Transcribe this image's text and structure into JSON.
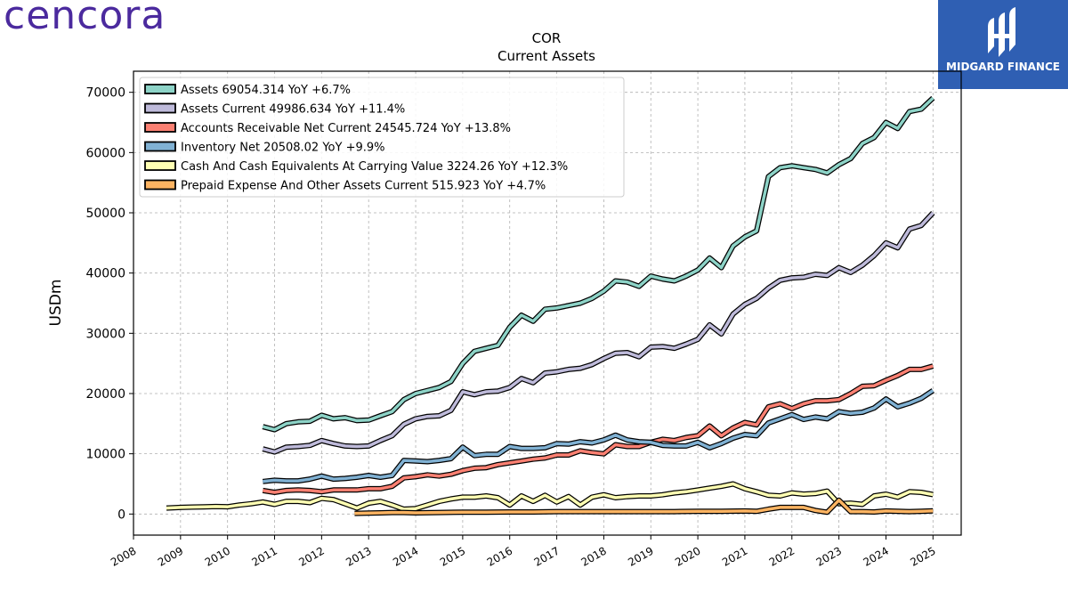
{
  "brand": {
    "logo_text": "cencora",
    "sponsor": "MIDGARD FINANCE"
  },
  "chart_data": {
    "type": "line",
    "title": "COR",
    "subtitle": "Current  Assets",
    "ylabel": "USDm",
    "xlabel": "",
    "xlim": [
      2008.0,
      2025.6
    ],
    "ylim": [
      -3500,
      73500
    ],
    "yticks": [
      0,
      10000,
      20000,
      30000,
      40000,
      50000,
      60000,
      70000
    ],
    "xticks": [
      2008,
      2009,
      2010,
      2011,
      2012,
      2013,
      2014,
      2015,
      2016,
      2017,
      2018,
      2019,
      2020,
      2021,
      2022,
      2023,
      2024,
      2025
    ],
    "grid": true,
    "legend_position": "top-left",
    "series": [
      {
        "name": "Assets  69054.314 YoY +6.7%",
        "color": "#8dd3c7",
        "x": [
          2010.75,
          2011.0,
          2011.25,
          2011.5,
          2011.75,
          2012.0,
          2012.25,
          2012.5,
          2012.75,
          2013.0,
          2013.25,
          2013.5,
          2013.75,
          2014.0,
          2014.25,
          2014.5,
          2014.75,
          2015.0,
          2015.25,
          2015.5,
          2015.75,
          2016.0,
          2016.25,
          2016.5,
          2016.75,
          2017.0,
          2017.25,
          2017.5,
          2017.75,
          2018.0,
          2018.25,
          2018.5,
          2018.75,
          2019.0,
          2019.25,
          2019.5,
          2019.75,
          2020.0,
          2020.25,
          2020.5,
          2020.75,
          2021.0,
          2021.25,
          2021.5,
          2021.75,
          2022.0,
          2022.25,
          2022.5,
          2022.75,
          2023.0,
          2023.25,
          2023.5,
          2023.75,
          2024.0,
          2024.25,
          2024.5,
          2024.75,
          2025.0
        ],
        "y": [
          14500,
          14000,
          15000,
          15300,
          15400,
          16400,
          15800,
          16000,
          15500,
          15600,
          16300,
          17000,
          19000,
          20000,
          20500,
          21000,
          22000,
          25000,
          27000,
          27500,
          28000,
          31000,
          33000,
          32000,
          34000,
          34200,
          34600,
          35000,
          35800,
          37000,
          38700,
          38500,
          37800,
          39500,
          39000,
          38700,
          39500,
          40500,
          42500,
          40900,
          44500,
          46000,
          47000,
          56000,
          57500,
          57800,
          57500,
          57200,
          56600,
          58000,
          59000,
          61500,
          62500,
          65000,
          64000,
          66800,
          67200,
          69054
        ]
      },
      {
        "name": "Assets Current  49986.634 YoY +11.4%",
        "color": "#bebada",
        "x": [
          2010.75,
          2011.0,
          2011.25,
          2011.5,
          2011.75,
          2012.0,
          2012.25,
          2012.5,
          2012.75,
          2013.0,
          2013.25,
          2013.5,
          2013.75,
          2014.0,
          2014.25,
          2014.5,
          2014.75,
          2015.0,
          2015.25,
          2015.5,
          2015.75,
          2016.0,
          2016.25,
          2016.5,
          2016.75,
          2017.0,
          2017.25,
          2017.5,
          2017.75,
          2018.0,
          2018.25,
          2018.5,
          2018.75,
          2019.0,
          2019.25,
          2019.5,
          2019.75,
          2020.0,
          2020.25,
          2020.5,
          2020.75,
          2021.0,
          2021.25,
          2021.5,
          2021.75,
          2022.0,
          2022.25,
          2022.5,
          2022.75,
          2023.0,
          2023.25,
          2023.5,
          2023.75,
          2024.0,
          2024.25,
          2024.5,
          2024.75,
          2025.0
        ],
        "y": [
          10800,
          10300,
          11100,
          11200,
          11400,
          12200,
          11700,
          11300,
          11200,
          11300,
          12200,
          13000,
          14900,
          15800,
          16200,
          16300,
          17200,
          20300,
          19800,
          20300,
          20400,
          21000,
          22500,
          21800,
          23400,
          23600,
          24000,
          24200,
          24800,
          25800,
          26700,
          26800,
          26100,
          27700,
          27800,
          27500,
          28200,
          29000,
          31400,
          29900,
          33200,
          34800,
          35800,
          37500,
          38800,
          39200,
          39300,
          39800,
          39600,
          40900,
          40100,
          41300,
          42900,
          45000,
          44200,
          47300,
          47900,
          49987
        ]
      },
      {
        "name": "Accounts Receivable Net Current  24545.724 YoY +13.8%",
        "color": "#fb8072",
        "x": [
          2010.75,
          2011.0,
          2011.25,
          2011.5,
          2011.75,
          2012.0,
          2012.25,
          2012.5,
          2012.75,
          2013.0,
          2013.25,
          2013.5,
          2013.75,
          2014.0,
          2014.25,
          2014.5,
          2014.75,
          2015.0,
          2015.25,
          2015.5,
          2015.75,
          2016.0,
          2016.25,
          2016.5,
          2016.75,
          2017.0,
          2017.25,
          2017.5,
          2017.75,
          2018.0,
          2018.25,
          2018.5,
          2018.75,
          2019.0,
          2019.25,
          2019.5,
          2019.75,
          2020.0,
          2020.25,
          2020.5,
          2020.75,
          2021.0,
          2021.25,
          2021.5,
          2021.75,
          2022.0,
          2022.25,
          2022.5,
          2022.75,
          2023.0,
          2023.25,
          2023.5,
          2023.75,
          2024.0,
          2024.25,
          2024.5,
          2024.75,
          2025.0
        ],
        "y": [
          3900,
          3600,
          3900,
          4000,
          3900,
          3700,
          4000,
          4000,
          4000,
          4200,
          4200,
          4600,
          6000,
          6200,
          6500,
          6300,
          6600,
          7200,
          7600,
          7700,
          8200,
          8500,
          8800,
          9100,
          9300,
          9800,
          9800,
          10500,
          10200,
          10000,
          11500,
          11200,
          11200,
          11900,
          12400,
          12200,
          12700,
          13000,
          14600,
          13000,
          14300,
          15200,
          14800,
          17800,
          18300,
          17500,
          18300,
          18800,
          18800,
          19000,
          20000,
          21200,
          21300,
          22200,
          23000,
          24000,
          24000,
          24546
        ]
      },
      {
        "name": "Inventory Net  20508.02 YoY +9.9%",
        "color": "#80b1d3",
        "x": [
          2010.75,
          2011.0,
          2011.25,
          2011.5,
          2011.75,
          2012.0,
          2012.25,
          2012.5,
          2012.75,
          2013.0,
          2013.25,
          2013.5,
          2013.75,
          2014.0,
          2014.25,
          2014.5,
          2014.75,
          2015.0,
          2015.25,
          2015.5,
          2015.75,
          2016.0,
          2016.25,
          2016.5,
          2016.75,
          2017.0,
          2017.25,
          2017.5,
          2017.75,
          2018.0,
          2018.25,
          2018.5,
          2018.75,
          2019.0,
          2019.25,
          2019.5,
          2019.75,
          2020.0,
          2020.25,
          2020.5,
          2020.75,
          2021.0,
          2021.25,
          2021.5,
          2021.75,
          2022.0,
          2022.25,
          2022.5,
          2022.75,
          2023.0,
          2023.25,
          2023.5,
          2023.75,
          2024.0,
          2024.25,
          2024.5,
          2024.75,
          2025.0
        ],
        "y": [
          5400,
          5600,
          5500,
          5500,
          5800,
          6300,
          5800,
          5900,
          6100,
          6400,
          6100,
          6400,
          8900,
          8800,
          8700,
          8900,
          9200,
          11100,
          9700,
          9900,
          9900,
          11200,
          10900,
          10900,
          11000,
          11700,
          11600,
          12000,
          11800,
          12300,
          13100,
          12300,
          12000,
          11900,
          11400,
          11300,
          11300,
          11900,
          11000,
          11700,
          12600,
          13200,
          13000,
          15100,
          15800,
          16500,
          15700,
          16100,
          15800,
          17000,
          16700,
          16900,
          17600,
          19100,
          17800,
          18400,
          19200,
          20508
        ]
      },
      {
        "name": "Cash And Cash Equivalents At Carrying Value  3224.26 YoY +12.3%",
        "color": "#ffffb3",
        "x": [
          2008.7,
          2009.0,
          2009.25,
          2009.5,
          2009.75,
          2010.0,
          2010.25,
          2010.5,
          2010.75,
          2011.0,
          2011.25,
          2011.5,
          2011.75,
          2012.0,
          2012.25,
          2012.5,
          2012.75,
          2013.0,
          2013.25,
          2013.5,
          2013.75,
          2014.0,
          2014.25,
          2014.5,
          2014.75,
          2015.0,
          2015.25,
          2015.5,
          2015.75,
          2016.0,
          2016.25,
          2016.5,
          2016.75,
          2017.0,
          2017.25,
          2017.5,
          2017.75,
          2018.0,
          2018.25,
          2018.5,
          2018.75,
          2019.0,
          2019.25,
          2019.5,
          2019.75,
          2020.0,
          2020.25,
          2020.5,
          2020.75,
          2021.0,
          2021.25,
          2021.5,
          2021.75,
          2022.0,
          2022.25,
          2022.5,
          2022.75,
          2023.0,
          2023.25,
          2023.5,
          2023.75,
          2024.0,
          2024.25,
          2024.5,
          2024.75,
          2025.0
        ],
        "y": [
          1000,
          1100,
          1150,
          1200,
          1250,
          1200,
          1500,
          1700,
          2000,
          1600,
          2100,
          2100,
          1900,
          2600,
          2400,
          1700,
          1000,
          1800,
          2100,
          1500,
          800,
          900,
          1500,
          2100,
          2500,
          2800,
          2800,
          3000,
          2700,
          1500,
          3000,
          2100,
          3100,
          2000,
          2900,
          1500,
          2800,
          3200,
          2700,
          2900,
          3000,
          3000,
          3200,
          3500,
          3700,
          4000,
          4300,
          4600,
          5000,
          4200,
          3700,
          3100,
          3000,
          3500,
          3300,
          3400,
          3800,
          1700,
          1800,
          1600,
          3000,
          3300,
          2800,
          3700,
          3600,
          3224
        ]
      },
      {
        "name": "Prepaid Expense And Other Assets Current  515.923 YoY +4.7%",
        "color": "#fdb462",
        "x": [
          2012.7,
          2013.0,
          2013.25,
          2013.5,
          2013.75,
          2014.0,
          2014.5,
          2015.0,
          2015.5,
          2016.0,
          2016.5,
          2017.0,
          2017.5,
          2018.0,
          2018.5,
          2019.0,
          2019.5,
          2020.0,
          2020.5,
          2021.0,
          2021.25,
          2021.5,
          2021.75,
          2022.0,
          2022.25,
          2022.5,
          2022.75,
          2023.0,
          2023.25,
          2023.5,
          2023.75,
          2024.0,
          2024.25,
          2024.5,
          2024.75,
          2025.0
        ],
        "y": [
          100,
          150,
          200,
          250,
          250,
          200,
          250,
          300,
          300,
          350,
          350,
          400,
          400,
          400,
          400,
          400,
          400,
          450,
          450,
          500,
          450,
          800,
          1100,
          1100,
          1100,
          600,
          300,
          2300,
          400,
          400,
          350,
          500,
          450,
          400,
          450,
          516
        ]
      }
    ]
  }
}
